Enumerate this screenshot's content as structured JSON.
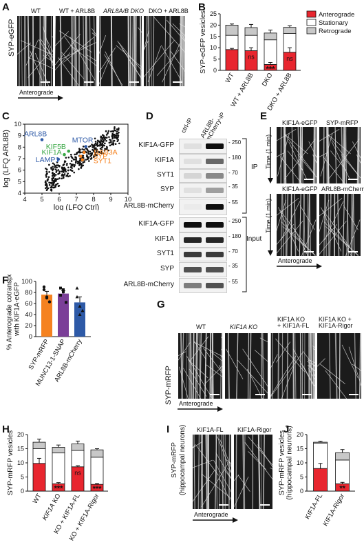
{
  "panels": {
    "A": "A",
    "B": "B",
    "C": "C",
    "D": "D",
    "E": "E",
    "F": "F",
    "G": "G",
    "H": "H",
    "I": "I",
    "J": "J"
  },
  "panel_a": {
    "ylabel": "SYP-eGFP",
    "columns": [
      "WT",
      "WT + ARL8B",
      "ARL8A/B DKO",
      "DKO + ARL8B"
    ],
    "arrow": "Anterograde"
  },
  "legend_b": {
    "anterograde": "Anterograde",
    "stationary": "Stationary",
    "retrograde": "Retrograde"
  },
  "panel_d": {
    "cols": [
      "ctrl-IP",
      "ARL8B-mCherry-IP"
    ],
    "ip_rows": [
      "KIF1A-GFP",
      "KIF1A",
      "SYT1",
      "SYP",
      "ARL8B-mCherry"
    ],
    "input_rows": [
      "KIF1A-GFP",
      "KIF1A",
      "SYT1",
      "SYP",
      "ARL8B-mCherry"
    ],
    "ip_label": "IP",
    "input_label": "Input",
    "mw_ip": [
      "250",
      "180",
      "70",
      "35",
      "55"
    ],
    "mw_input": [
      "250",
      "180",
      "70",
      "35",
      "55"
    ]
  },
  "panel_e": {
    "top": [
      "KIF1A-eGFP",
      "SYP-mRFP"
    ],
    "bottom": [
      "KIF1A-eGFP",
      "ARL8B-mCherry"
    ],
    "time": "Time (1 min)",
    "arrow": "Anterograde"
  },
  "panel_g": {
    "ylabel": "SYP-mRFP",
    "columns": [
      "WT",
      "KIF1A KO",
      "KIF1A KO\n+ KIF1A-FL",
      "KIF1A KO +\nKIF1A-Rigor"
    ],
    "arrow": "Anterograde"
  },
  "panel_i": {
    "ylabel": "SYP-mRFP\n(hippocampal neurons)",
    "columns": [
      "KIF1A-FL",
      "KIF1A-Rigor"
    ],
    "arrow": "Anterograde"
  },
  "colors": {
    "anterograde": "#e8262f",
    "stationary": "#ffffff",
    "retrograde": "#c8c8c8",
    "orange": "#f58220",
    "purple": "#7b3f98",
    "blue": "#2e5aa7",
    "green": "#39a845"
  },
  "chart_data": [
    {
      "id": "B",
      "type": "bar",
      "ylabel": "SYP-eGFP vesicles",
      "ylim": [
        0,
        25
      ],
      "yticks": [
        0,
        5,
        10,
        15,
        20,
        25
      ],
      "categories": [
        "WT",
        "WT + ARL8B",
        "DKO",
        "DKO + ARL8B"
      ],
      "series": [
        {
          "name": "Anterograde",
          "values": [
            9.2,
            8.7,
            2.6,
            8.0
          ],
          "errors": [
            0.5,
            1.3,
            0.9,
            2.0
          ]
        },
        {
          "name": "Stationary",
          "values": [
            6.3,
            6.8,
            10.9,
            8.3
          ]
        },
        {
          "name": "Retrograde",
          "values": [
            4.5,
            3.4,
            3.0,
            2.7
          ],
          "errors": [
            0.5,
            1.4,
            1.3,
            0.7
          ]
        }
      ],
      "annotations": [
        "",
        "ns",
        "***",
        "ns"
      ],
      "legend": "top-right"
    },
    {
      "id": "C",
      "type": "scatter",
      "xlabel": "log (LFQ Ctrl)",
      "ylabel": "log (LFQ ARL8B)",
      "xlim": [
        4,
        10
      ],
      "ylim": [
        4,
        10
      ],
      "xticks": [
        4,
        5,
        6,
        7,
        8,
        9,
        10
      ],
      "yticks": [
        4,
        5,
        6,
        7,
        8,
        9,
        10
      ],
      "labels": [
        {
          "text": "ARL8B",
          "x": 5.0,
          "y": 8.65,
          "color": "blue"
        },
        {
          "text": "MTOR",
          "x": 7.55,
          "y": 8.05,
          "color": "blue"
        },
        {
          "text": "KIF5B",
          "x": 6.55,
          "y": 7.65,
          "color": "green"
        },
        {
          "text": "KIF1A",
          "x": 6.3,
          "y": 7.35,
          "color": "green"
        },
        {
          "text": "LAMP1",
          "x": 5.95,
          "y": 6.95,
          "color": "blue"
        },
        {
          "text": "RAB3A",
          "x": 7.45,
          "y": 7.55,
          "color": "orange"
        },
        {
          "text": "SYP",
          "x": 7.25,
          "y": 7.2,
          "color": "orange"
        },
        {
          "text": "SYT1",
          "x": 7.35,
          "y": 6.9,
          "color": "orange"
        }
      ]
    },
    {
      "id": "F",
      "type": "bar",
      "ylabel": "% Anterograde cotransport\nwith KIF1A-eGFP",
      "ylim": [
        0,
        100
      ],
      "yticks": [
        0,
        20,
        40,
        60,
        80,
        100
      ],
      "categories": [
        "SYP-mRFP",
        "MUNC13-1-SNAP",
        "ARL8B-mCherry"
      ],
      "values": [
        76,
        78,
        62
      ],
      "errors": [
        6,
        5,
        10
      ],
      "colors": [
        "orange",
        "purple",
        "blue"
      ],
      "points": [
        [
          90,
          70,
          63,
          85,
          72
        ],
        [
          88,
          81,
          62,
          75,
          85
        ],
        [
          72,
          55,
          47,
          88,
          40
        ]
      ]
    },
    {
      "id": "H",
      "type": "bar",
      "ylabel": "SYP-mRFP vesicles",
      "ylim": [
        0,
        20
      ],
      "yticks": [
        0,
        5,
        10,
        15,
        20
      ],
      "categories": [
        "WT",
        "KIF1A KO",
        "KO + KIF1A-FL",
        "KO + KIF1A-Rigor"
      ],
      "series": [
        {
          "name": "Anterograde",
          "values": [
            9.8,
            2.6,
            8.6,
            2.4
          ],
          "errors": [
            1.8,
            0.4,
            0.4,
            0.3
          ]
        },
        {
          "name": "Stationary",
          "values": [
            5.2,
            10.9,
            5.8,
            9.6
          ]
        },
        {
          "name": "Retrograde",
          "values": [
            2.3,
            2.0,
            2.3,
            2.6
          ],
          "errors": [
            1.1,
            0.8,
            1.0,
            0.4
          ]
        }
      ],
      "annotations": [
        "",
        "***",
        "ns",
        "***"
      ]
    },
    {
      "id": "J",
      "type": "bar",
      "ylabel": "SYP-mRFP vesicles\n(hippocampal neurons)",
      "ylim": [
        0,
        20
      ],
      "yticks": [
        0,
        5,
        10,
        15,
        20
      ],
      "categories": [
        "KIF1A-FL",
        "KIF1A-Rigor"
      ],
      "series": [
        {
          "name": "Anterograde",
          "values": [
            8.0,
            2.6
          ],
          "errors": [
            1.8,
            0.5
          ]
        },
        {
          "name": "Stationary",
          "values": [
            9.0,
            8.4
          ]
        },
        {
          "name": "Retrograde",
          "values": [
            0.3,
            2.6
          ],
          "errors": [
            0.3,
            1.1
          ]
        }
      ],
      "annotations": [
        "",
        "**"
      ]
    }
  ]
}
